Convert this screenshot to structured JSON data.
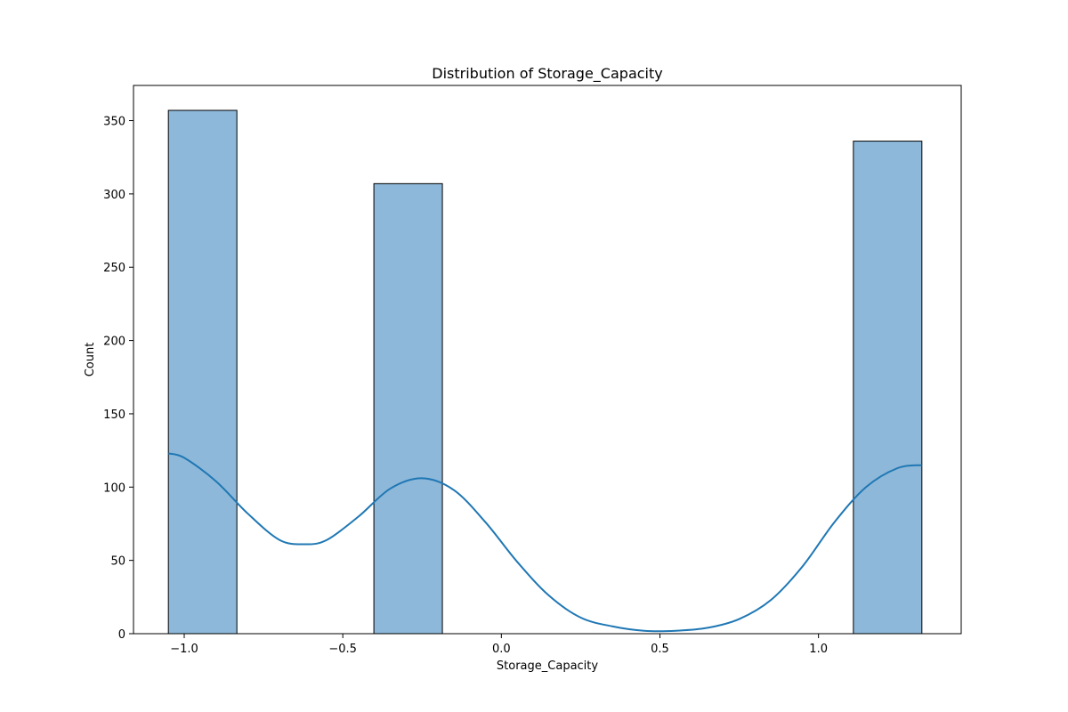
{
  "chart_data": {
    "type": "bar",
    "title": "Distribution of Storage_Capacity",
    "xlabel": "Storage_Capacity",
    "ylabel": "Count",
    "xlim": [
      -1.16,
      1.45
    ],
    "ylim": [
      0,
      374
    ],
    "x_ticks": [
      -1.0,
      -0.5,
      0.0,
      0.5,
      1.0
    ],
    "x_tick_labels": [
      "−1.0",
      "−0.5",
      "0.0",
      "0.5",
      "1.0"
    ],
    "y_ticks": [
      0,
      50,
      100,
      150,
      200,
      250,
      300,
      350
    ],
    "y_tick_labels": [
      "0",
      "50",
      "100",
      "150",
      "200",
      "250",
      "300",
      "350"
    ],
    "bins": [
      {
        "x0": -1.05,
        "x1": -0.834,
        "count": 357
      },
      {
        "x0": -0.834,
        "x1": -0.618,
        "count": 0
      },
      {
        "x0": -0.618,
        "x1": -0.402,
        "count": 0
      },
      {
        "x0": -0.402,
        "x1": -0.186,
        "count": 307
      },
      {
        "x0": -0.186,
        "x1": 0.03,
        "count": 0
      },
      {
        "x0": 0.03,
        "x1": 0.246,
        "count": 0
      },
      {
        "x0": 0.246,
        "x1": 0.462,
        "count": 0
      },
      {
        "x0": 0.462,
        "x1": 0.678,
        "count": 0
      },
      {
        "x0": 0.678,
        "x1": 0.894,
        "count": 0
      },
      {
        "x0": 0.894,
        "x1": 1.11,
        "count": 0
      },
      {
        "x0": 1.11,
        "x1": 1.326,
        "count": 336
      }
    ],
    "kde": {
      "x": [
        -1.05,
        -1.0,
        -0.9,
        -0.8,
        -0.7,
        -0.62,
        -0.55,
        -0.45,
        -0.35,
        -0.25,
        -0.15,
        -0.05,
        0.05,
        0.15,
        0.25,
        0.35,
        0.45,
        0.55,
        0.65,
        0.75,
        0.85,
        0.95,
        1.05,
        1.15,
        1.25,
        1.326
      ],
      "y": [
        123,
        120,
        104,
        82,
        64,
        61,
        64,
        80,
        99,
        106,
        98,
        76,
        49,
        26,
        11,
        5,
        2,
        2,
        4,
        10,
        23,
        46,
        76,
        100,
        113,
        115
      ]
    },
    "grid": false,
    "colors": {
      "bar_fill": "#8db8d9",
      "bar_edge": "#000000",
      "kde_line": "#1f77b4"
    }
  }
}
